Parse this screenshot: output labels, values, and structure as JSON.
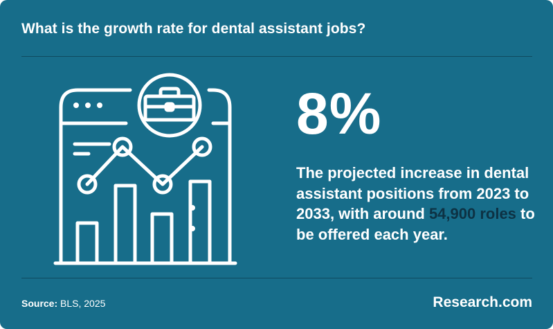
{
  "header": {
    "title": "What is the growth rate for dental assistant jobs?"
  },
  "illustration": {
    "icon": "analytics-briefcase-icon"
  },
  "stat": {
    "value": "8%",
    "description_before": "The projected increase in dental assistant positions from 2023 to 2033, with around ",
    "highlight": "54,900 roles",
    "description_after": " to be offered each year."
  },
  "footer": {
    "source_label": "Source:",
    "source_value": " BLS, 2025",
    "brand": "Research.com"
  },
  "colors": {
    "background": "#176d8a",
    "highlight": "#0d3244",
    "divider": "#0e4a5f"
  }
}
